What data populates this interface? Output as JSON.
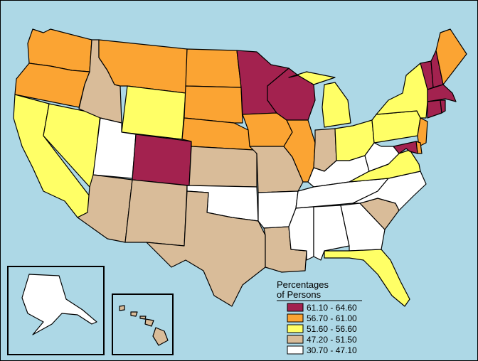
{
  "legend": {
    "title_line1": "Percentages",
    "title_line2": "of Persons",
    "items": [
      {
        "label": "61.10 - 64.60",
        "color": "#a3224f"
      },
      {
        "label": "56.70 - 61.00",
        "color": "#fba433"
      },
      {
        "label": "51.60 - 56.60",
        "color": "#ffff66"
      },
      {
        "label": "47.20 - 51.50",
        "color": "#d9bc99"
      },
      {
        "label": "30.70 - 47.10",
        "color": "#ffffff"
      }
    ]
  },
  "colors": {
    "water": "#add8e6",
    "c1": "#a3224f",
    "c2": "#fba433",
    "c3": "#ffff66",
    "c4": "#d9bc99",
    "c5": "#ffffff"
  }
}
